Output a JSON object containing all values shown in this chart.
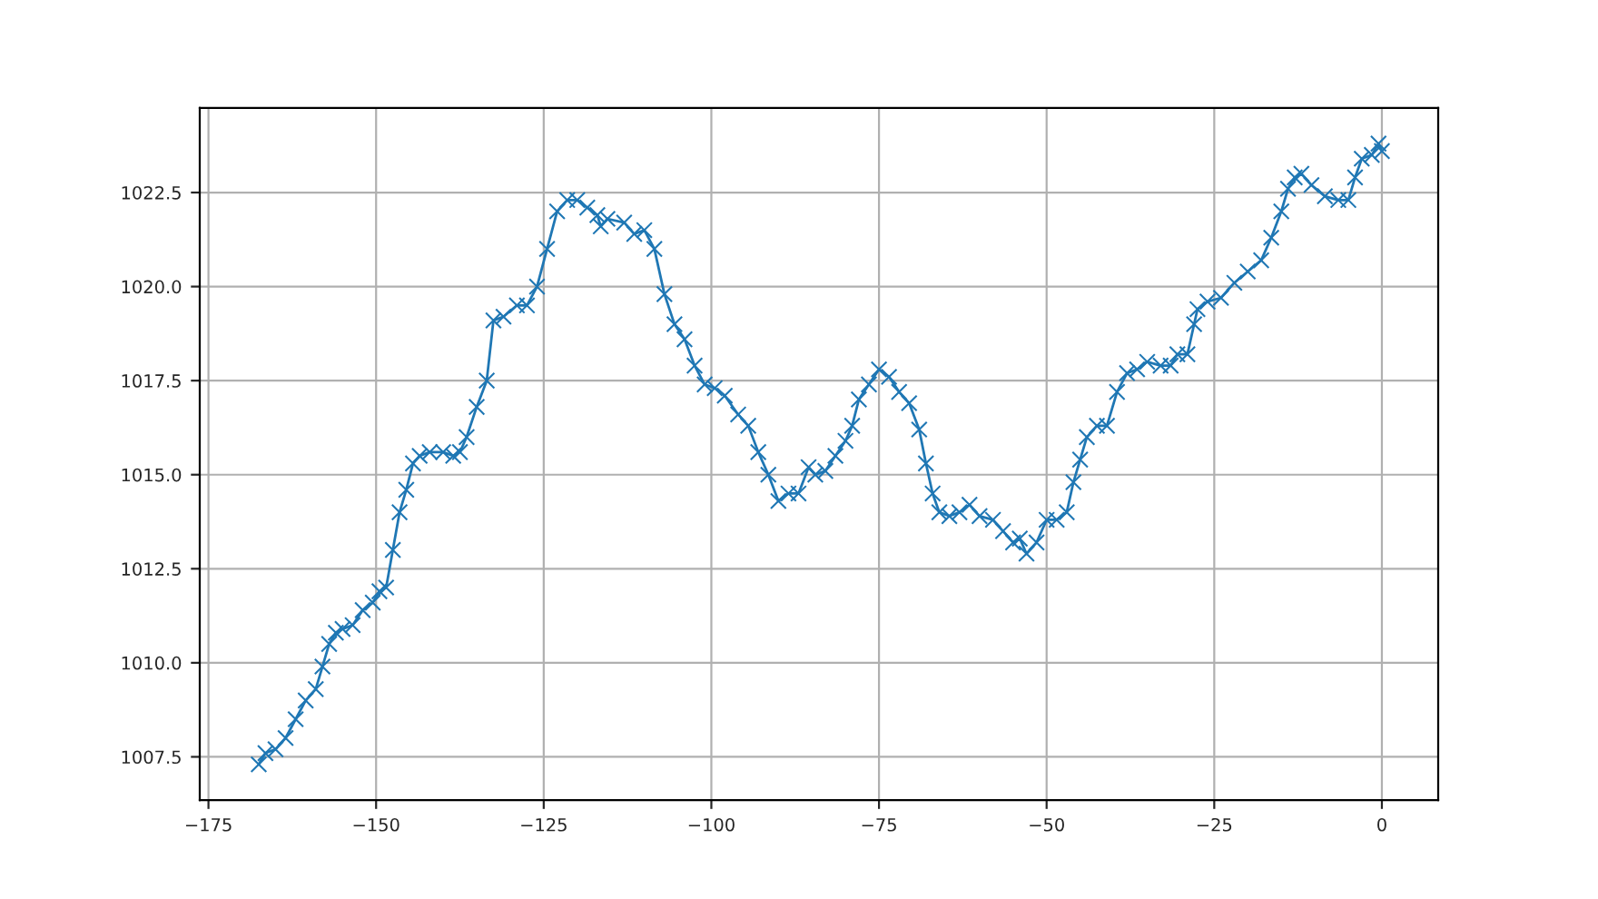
{
  "chart_data": {
    "type": "line",
    "marker": "cross",
    "grid": true,
    "xlim": [
      -176.3,
      8.4
    ],
    "ylim": [
      1006.35,
      1024.75
    ],
    "xticks": [
      {
        "value": -175,
        "label": "−175"
      },
      {
        "value": -150,
        "label": "−150"
      },
      {
        "value": -125,
        "label": "−125"
      },
      {
        "value": -100,
        "label": "−100"
      },
      {
        "value": -75,
        "label": "−75"
      },
      {
        "value": -50,
        "label": "−50"
      },
      {
        "value": -25,
        "label": "−25"
      },
      {
        "value": 0,
        "label": "0"
      }
    ],
    "yticks": [
      {
        "value": 1007.5,
        "label": "1007.5"
      },
      {
        "value": 1010,
        "label": "1010.0"
      },
      {
        "value": 1012.5,
        "label": "1012.5"
      },
      {
        "value": 1015,
        "label": "1015.0"
      },
      {
        "value": 1017.5,
        "label": "1017.5"
      },
      {
        "value": 1020,
        "label": "1020.0"
      },
      {
        "value": 1022.5,
        "label": "1022.5"
      }
    ],
    "x": [
      -167.5,
      -166.5,
      -165,
      -163.5,
      -162,
      -160.5,
      -159,
      -158,
      -157,
      -156,
      -155,
      -153.5,
      -152,
      -150.5,
      -149.5,
      -148.5,
      -147.5,
      -146.5,
      -145.5,
      -144.5,
      -143.5,
      -142,
      -140,
      -138.5,
      -137.5,
      -136.5,
      -135,
      -133.5,
      -132.5,
      -131,
      -129,
      -127.5,
      -126,
      -124.5,
      -123,
      -121.5,
      -120,
      -118.5,
      -117,
      -116.5,
      -115.5,
      -113,
      -111.5,
      -110,
      -108.5,
      -107,
      -105.5,
      -104,
      -102.5,
      -101,
      -99.5,
      -98,
      -96,
      -94.5,
      -93,
      -91.5,
      -90,
      -88.5,
      -87,
      -85.5,
      -84.5,
      -83,
      -81.5,
      -80,
      -79,
      -78,
      -76.5,
      -75,
      -73.5,
      -72,
      -70.5,
      -69,
      -68,
      -67,
      -66,
      -64.5,
      -63,
      -61.5,
      -60,
      -58,
      -56.5,
      -55,
      -54,
      -53,
      -51.5,
      -50,
      -48.5,
      -47,
      -46,
      -45,
      -44,
      -42.5,
      -41,
      -39.5,
      -38,
      -36.5,
      -35,
      -33,
      -31.5,
      -30.5,
      -29,
      -28,
      -27.5,
      -26,
      -24,
      -22,
      -20,
      -18,
      -16.5,
      -15,
      -14,
      -13,
      -12,
      -10.5,
      -8.5,
      -6.5,
      -5,
      -4,
      -3,
      -1.5,
      -0.5,
      0
    ],
    "series": [
      {
        "color": "#1f77b4",
        "values": [
          1007.3,
          1007.6,
          1007.7,
          1008.0,
          1008.5,
          1009.0,
          1009.3,
          1009.9,
          1010.5,
          1010.8,
          1010.9,
          1011.0,
          1011.4,
          1011.6,
          1011.9,
          1012.0,
          1013.0,
          1014.0,
          1014.6,
          1015.3,
          1015.5,
          1015.6,
          1015.6,
          1015.5,
          1015.6,
          1016.0,
          1016.8,
          1017.5,
          1019.1,
          1019.2,
          1019.5,
          1019.5,
          1020.0,
          1021.0,
          1022.0,
          1022.3,
          1022.3,
          1022.1,
          1021.9,
          1021.6,
          1021.8,
          1021.7,
          1021.4,
          1021.5,
          1021.0,
          1019.8,
          1019.0,
          1018.6,
          1017.9,
          1017.4,
          1017.3,
          1017.1,
          1016.6,
          1016.3,
          1015.6,
          1015.0,
          1014.3,
          1014.5,
          1014.5,
          1015.2,
          1015.0,
          1015.1,
          1015.5,
          1015.9,
          1016.3,
          1017.0,
          1017.4,
          1017.8,
          1017.6,
          1017.2,
          1016.9,
          1016.2,
          1015.3,
          1014.5,
          1014.0,
          1013.9,
          1014.0,
          1014.2,
          1013.9,
          1013.8,
          1013.5,
          1013.2,
          1013.3,
          1012.9,
          1013.2,
          1013.8,
          1013.8,
          1014.0,
          1014.8,
          1015.4,
          1016.0,
          1016.3,
          1016.3,
          1017.2,
          1017.7,
          1017.8,
          1018.0,
          1017.9,
          1017.9,
          1018.2,
          1018.2,
          1019.0,
          1019.4,
          1019.6,
          1019.7,
          1020.1,
          1020.4,
          1020.7,
          1021.3,
          1022.0,
          1022.6,
          1022.9,
          1023.0,
          1022.7,
          1022.4,
          1022.3,
          1022.3,
          1022.9,
          1023.4,
          1023.5,
          1023.8,
          1023.6
        ]
      }
    ]
  }
}
